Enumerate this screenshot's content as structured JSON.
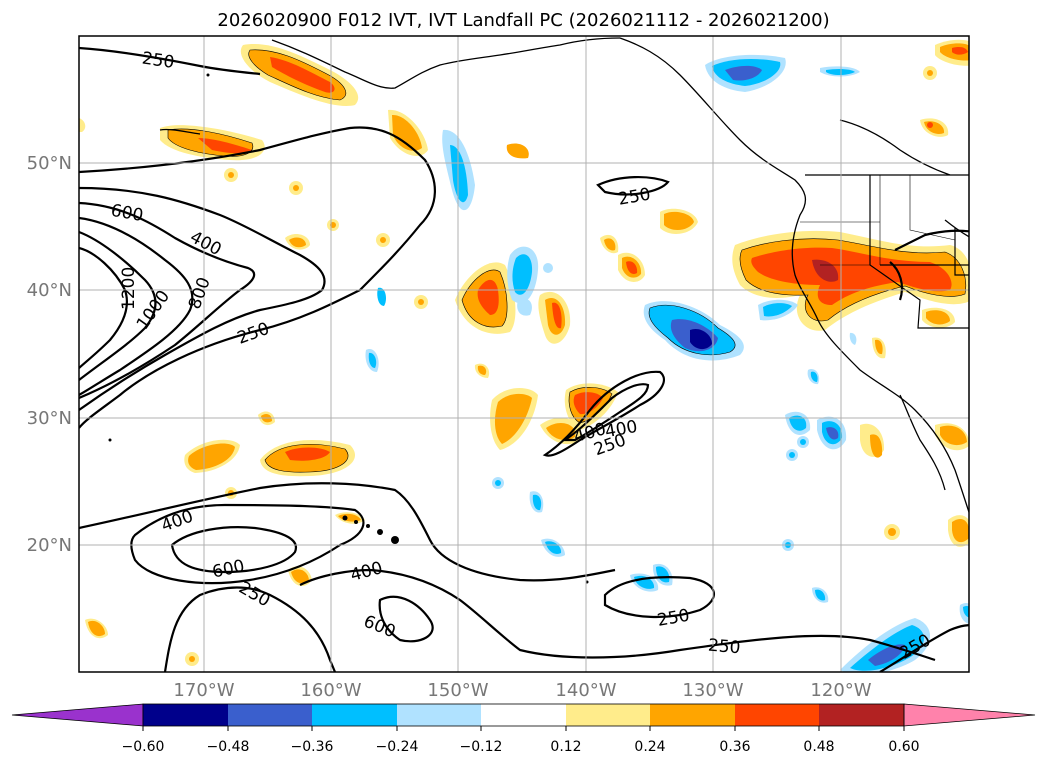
{
  "title": "2026020900 F012 IVT, IVT Landfall PC (2026021112 - 2026021200)",
  "axes": {
    "lat_labels": [
      "50°N",
      "40°N",
      "30°N",
      "20°N"
    ],
    "lon_labels": [
      "170°W",
      "160°W",
      "150°W",
      "140°W",
      "130°W",
      "120°W"
    ]
  },
  "ivt_contours": {
    "levels": [
      250,
      400,
      600,
      800,
      1000,
      1200
    ],
    "labels": [
      "250",
      "400",
      "600",
      "800",
      "1000",
      "1200",
      "400",
      "250",
      "250",
      "400",
      "250",
      "400",
      "600",
      "250",
      "400",
      "600",
      "250",
      "250",
      "250"
    ]
  },
  "colorbar": {
    "ticks": [
      "−0.60",
      "−0.48",
      "−0.36",
      "−0.24",
      "−0.12",
      "0.12",
      "0.24",
      "0.36",
      "0.48",
      "0.60"
    ],
    "colors": [
      "#9a32cd",
      "#00008b",
      "#3a5fcd",
      "#00bfff",
      "#b0e2ff",
      "#ffffff",
      "#ffec8b",
      "#ffa500",
      "#ff4500",
      "#b22222",
      "#ff82ab"
    ]
  }
}
